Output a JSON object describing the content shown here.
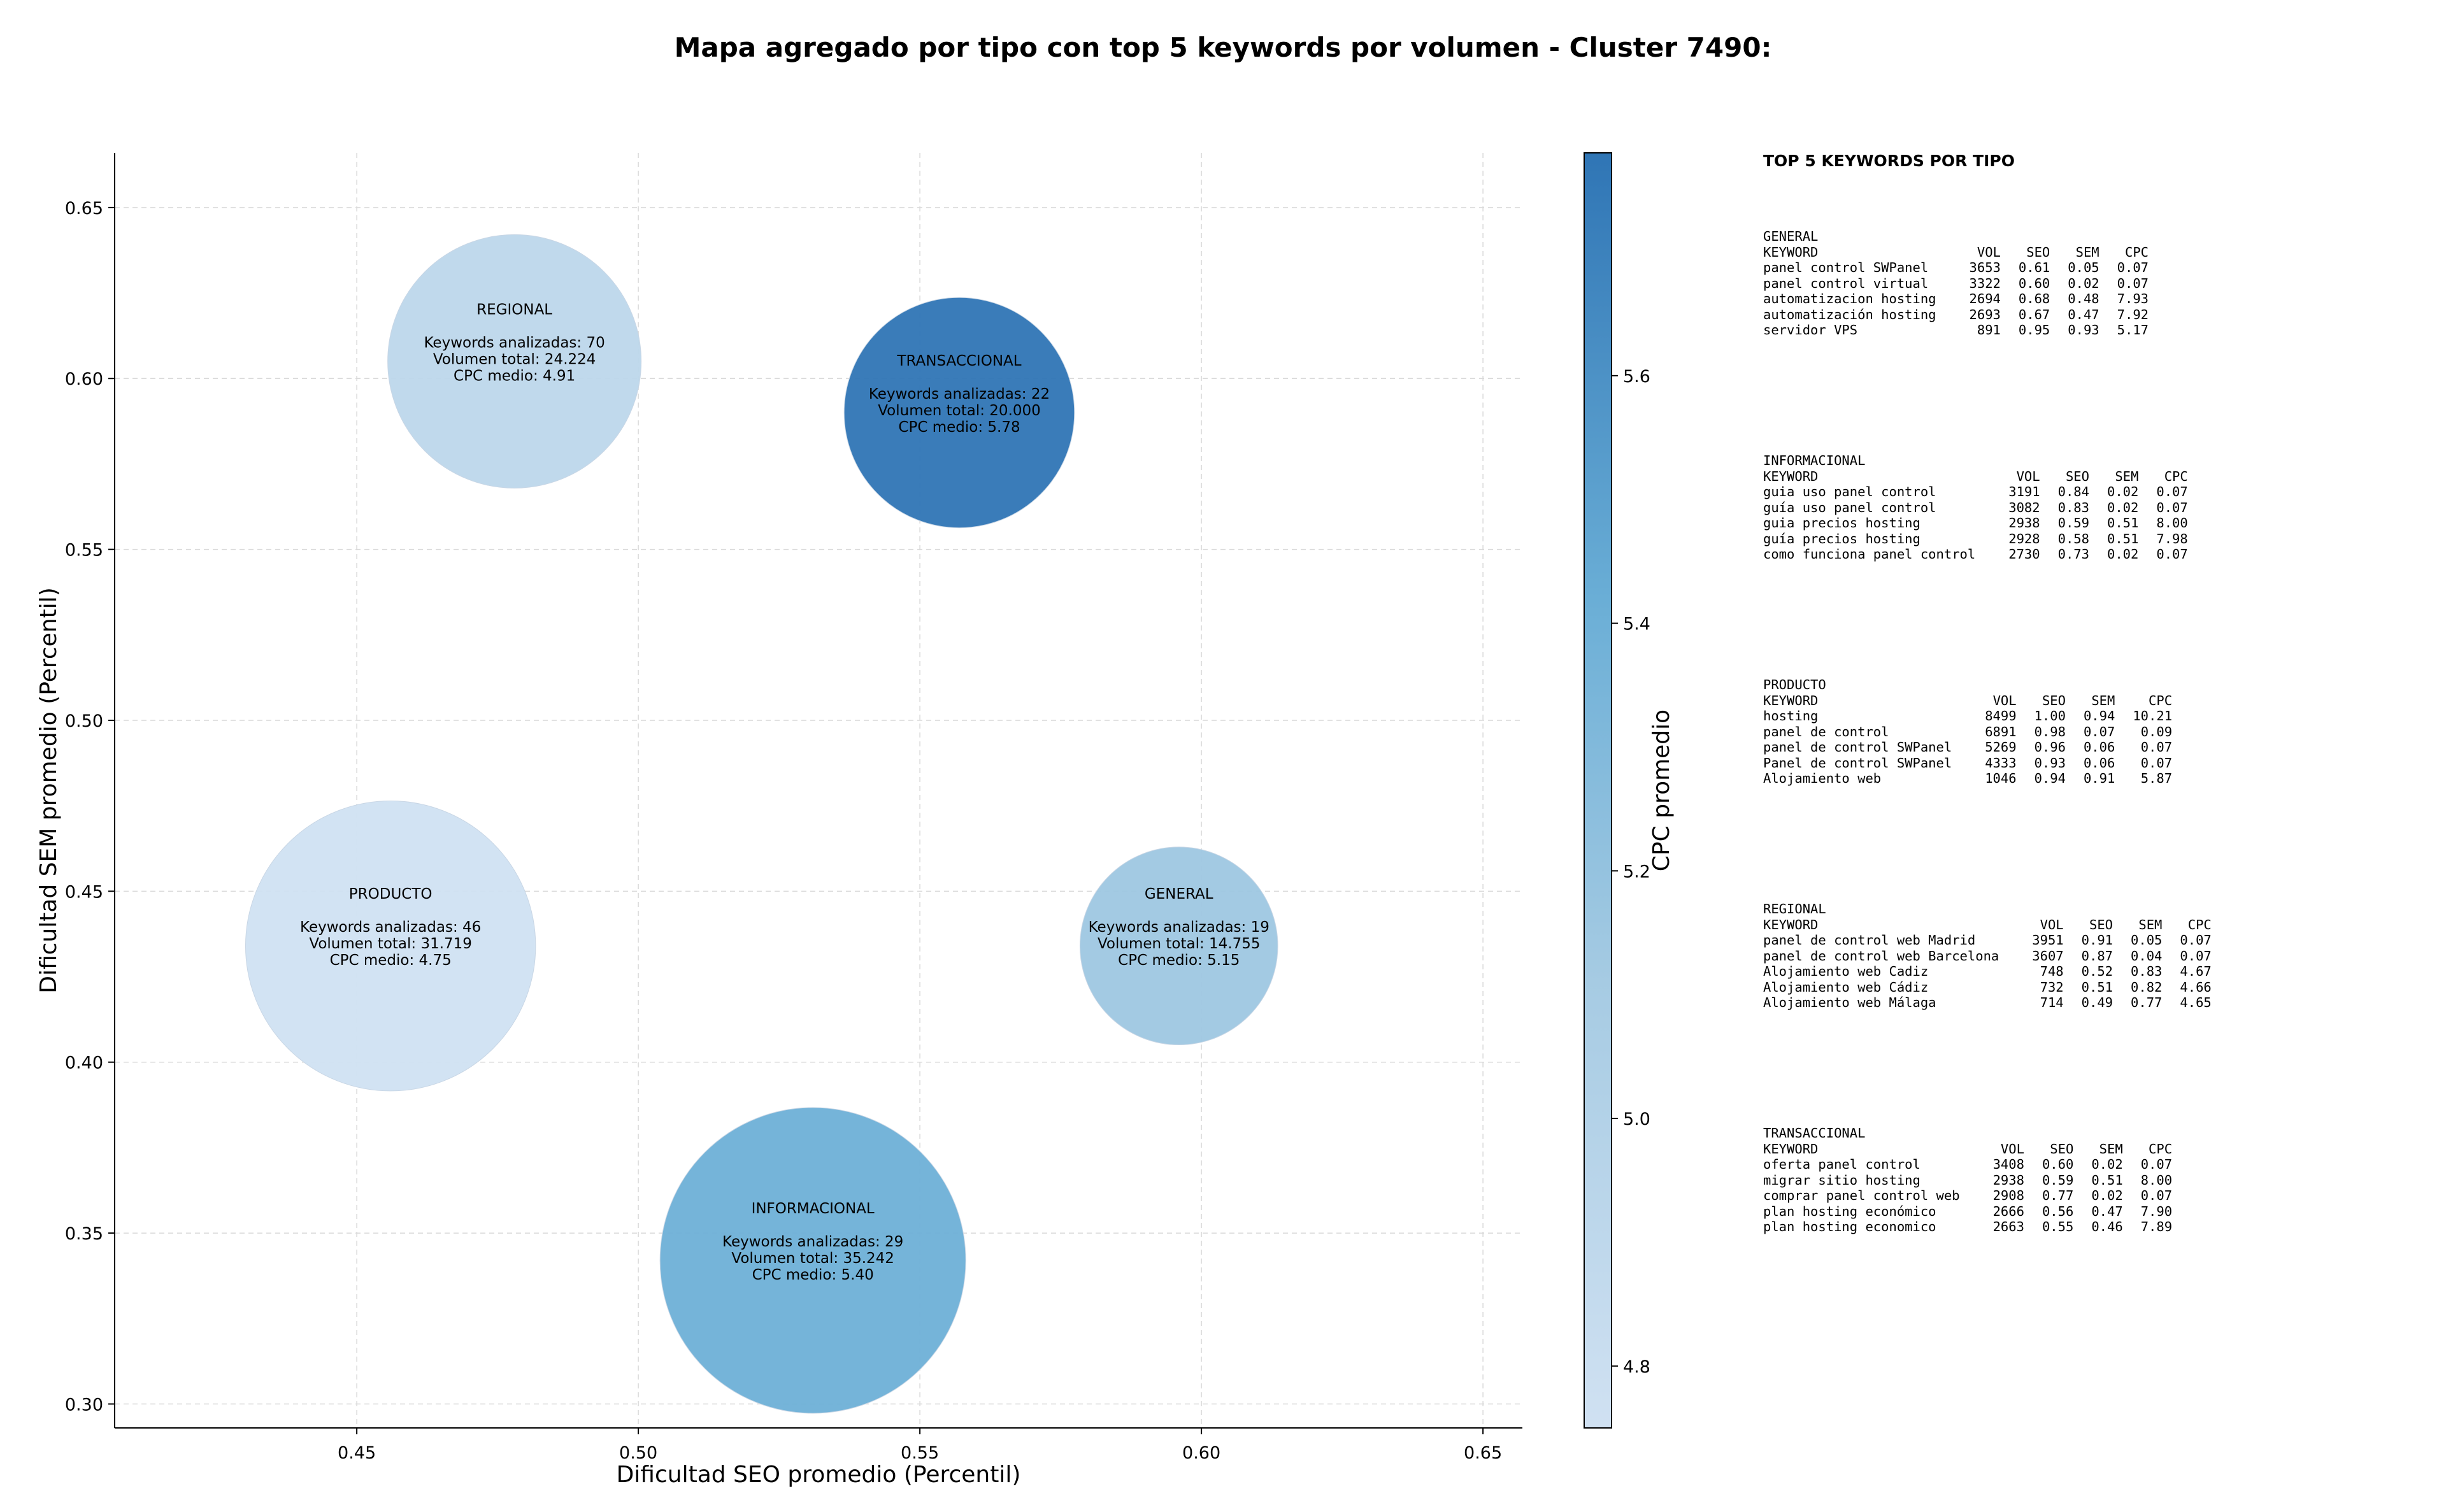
{
  "chart_data": {
    "type": "scatter",
    "subtype": "bubble",
    "title": "Mapa agregado por tipo con top 5 keywords por volumen - Cluster 7490:",
    "xlabel": "Dificultad SEO promedio (Percentil)",
    "ylabel": "Dificultad SEM promedio (Percentil)",
    "xlim": [
      0.407,
      0.657
    ],
    "ylim": [
      0.293,
      0.666
    ],
    "xticks": [
      "0.45",
      "0.50",
      "0.55",
      "0.60",
      "0.65"
    ],
    "yticks": [
      "0.30",
      "0.35",
      "0.40",
      "0.45",
      "0.50",
      "0.55",
      "0.60",
      "0.65"
    ],
    "grid": true,
    "bubble_label_prefixes": {
      "keywords": "Keywords analizadas: ",
      "volume": "Volumen total: ",
      "cpc": "CPC medio: "
    },
    "series": [
      {
        "type_name": "REGIONAL",
        "x": 0.478,
        "y": 0.605,
        "keywords": 70,
        "volume": "24.224",
        "volume_value": 24224,
        "cpc": "4.91",
        "cpc_value": 4.91
      },
      {
        "type_name": "TRANSACCIONAL",
        "x": 0.557,
        "y": 0.59,
        "keywords": 22,
        "volume": "20.000",
        "volume_value": 20000,
        "cpc": "5.78",
        "cpc_value": 5.78
      },
      {
        "type_name": "PRODUCTO",
        "x": 0.456,
        "y": 0.434,
        "keywords": 46,
        "volume": "31.719",
        "volume_value": 31719,
        "cpc": "4.75",
        "cpc_value": 4.75
      },
      {
        "type_name": "GENERAL",
        "x": 0.596,
        "y": 0.434,
        "keywords": 19,
        "volume": "14.755",
        "volume_value": 14755,
        "cpc": "5.15",
        "cpc_value": 5.15
      },
      {
        "type_name": "INFORMACIONAL",
        "x": 0.531,
        "y": 0.342,
        "keywords": 29,
        "volume": "35.242",
        "volume_value": 35242,
        "cpc": "5.40",
        "cpc_value": 5.4
      }
    ],
    "colorbar": {
      "label": "CPC promedio",
      "range": [
        4.75,
        5.78
      ],
      "ticks": [
        "4.8",
        "5.0",
        "5.2",
        "5.4",
        "5.6"
      ],
      "colors": [
        "#d0e1f2",
        "#2f75b5"
      ]
    }
  },
  "side_panel": {
    "heading": "TOP 5 KEYWORDS POR TIPO",
    "columns": [
      "KEYWORD",
      "VOL",
      "SEO",
      "SEM",
      "CPC"
    ],
    "groups": [
      {
        "type_name": "GENERAL",
        "rows": [
          [
            "panel control SWPanel",
            "3653",
            "0.61",
            "0.05",
            "0.07"
          ],
          [
            "panel control virtual",
            "3322",
            "0.60",
            "0.02",
            "0.07"
          ],
          [
            "automatizacion hosting",
            "2694",
            "0.68",
            "0.48",
            "7.93"
          ],
          [
            "automatización hosting",
            "2693",
            "0.67",
            "0.47",
            "7.92"
          ],
          [
            "servidor VPS",
            "891",
            "0.95",
            "0.93",
            "5.17"
          ]
        ]
      },
      {
        "type_name": "INFORMACIONAL",
        "rows": [
          [
            "guia uso panel control",
            "3191",
            "0.84",
            "0.02",
            "0.07"
          ],
          [
            "guía uso panel control",
            "3082",
            "0.83",
            "0.02",
            "0.07"
          ],
          [
            "guia precios hosting",
            "2938",
            "0.59",
            "0.51",
            "8.00"
          ],
          [
            "guía precios hosting",
            "2928",
            "0.58",
            "0.51",
            "7.98"
          ],
          [
            "como funciona panel control",
            "2730",
            "0.73",
            "0.02",
            "0.07"
          ]
        ]
      },
      {
        "type_name": "PRODUCTO",
        "rows": [
          [
            "hosting",
            "8499",
            "1.00",
            "0.94",
            "10.21"
          ],
          [
            "panel de control",
            "6891",
            "0.98",
            "0.07",
            "0.09"
          ],
          [
            "panel de control SWPanel",
            "5269",
            "0.96",
            "0.06",
            "0.07"
          ],
          [
            "Panel de control SWPanel",
            "4333",
            "0.93",
            "0.06",
            "0.07"
          ],
          [
            "Alojamiento web",
            "1046",
            "0.94",
            "0.91",
            "5.87"
          ]
        ]
      },
      {
        "type_name": "REGIONAL",
        "rows": [
          [
            "panel de control web Madrid",
            "3951",
            "0.91",
            "0.05",
            "0.07"
          ],
          [
            "panel de control web Barcelona",
            "3607",
            "0.87",
            "0.04",
            "0.07"
          ],
          [
            "Alojamiento web Cadiz",
            "748",
            "0.52",
            "0.83",
            "4.67"
          ],
          [
            "Alojamiento web Cádiz",
            "732",
            "0.51",
            "0.82",
            "4.66"
          ],
          [
            "Alojamiento web Málaga",
            "714",
            "0.49",
            "0.77",
            "4.65"
          ]
        ]
      },
      {
        "type_name": "TRANSACCIONAL",
        "rows": [
          [
            "oferta panel control",
            "3408",
            "0.60",
            "0.02",
            "0.07"
          ],
          [
            "migrar sitio hosting",
            "2938",
            "0.59",
            "0.51",
            "8.00"
          ],
          [
            "comprar panel control web",
            "2908",
            "0.77",
            "0.02",
            "0.07"
          ],
          [
            "plan hosting económico",
            "2666",
            "0.56",
            "0.47",
            "7.90"
          ],
          [
            "plan hosting economico",
            "2663",
            "0.55",
            "0.46",
            "7.89"
          ]
        ]
      }
    ]
  }
}
